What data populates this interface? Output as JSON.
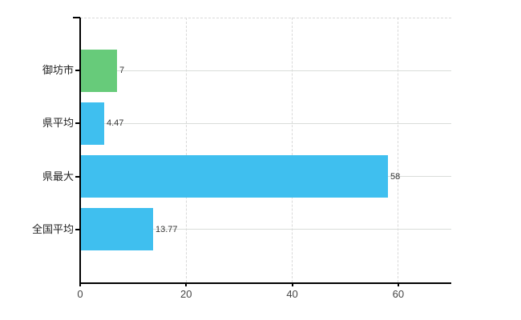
{
  "chart_data": {
    "type": "bar",
    "orientation": "horizontal",
    "title": "",
    "categories": [
      "御坊市",
      "県平均",
      "県最大",
      "全国平均"
    ],
    "values": [
      7,
      4.47,
      58,
      13.77
    ],
    "value_labels": [
      "7",
      "4.47",
      "58",
      "13.77"
    ],
    "bar_colors": [
      "#67cb7a",
      "#3fbfef",
      "#3fbfef",
      "#3fbfef"
    ],
    "x_ticks": [
      0,
      20,
      40,
      60
    ],
    "x_tick_labels": [
      "0",
      "20",
      "40",
      "60"
    ],
    "xlim": [
      0,
      70
    ],
    "grid": true,
    "gridline_color": "#d9d9d9",
    "axis_color": "#000000",
    "label_color": "#333333",
    "background_color": "#ffffff"
  }
}
